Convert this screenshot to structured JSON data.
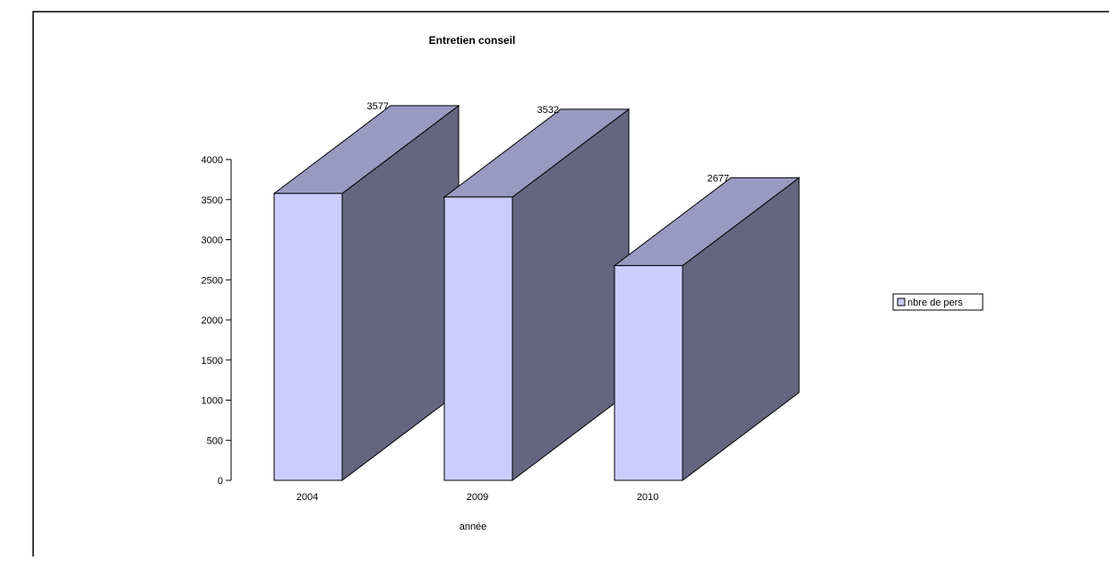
{
  "chart_data": {
    "type": "bar",
    "title": "Entretien conseil",
    "xlabel": "année",
    "ylabel": "",
    "categories": [
      "2004",
      "2009",
      "2010"
    ],
    "series": [
      {
        "name": "nbre de pers",
        "values": [
          3577,
          3532,
          2677
        ]
      }
    ],
    "ylim": [
      0,
      4000
    ],
    "yticks": [
      0,
      500,
      1000,
      1500,
      2000,
      2500,
      3000,
      3500,
      4000
    ],
    "grid": false,
    "style": "3d-column",
    "legend_position": "right",
    "colors": {
      "front": "#ccccff",
      "top": "#9999c1",
      "side": "#656582",
      "edge": "#000000"
    }
  }
}
